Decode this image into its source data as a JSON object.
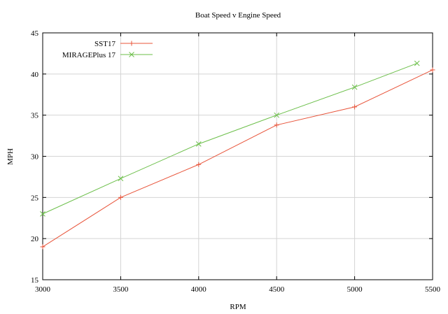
{
  "chart_data": {
    "type": "line",
    "title": "Boat Speed v Engine Speed",
    "xlabel": "RPM",
    "ylabel": "MPH",
    "xlim": [
      3000,
      5500
    ],
    "ylim": [
      15,
      45
    ],
    "xticks": [
      3000,
      3500,
      4000,
      4500,
      5000,
      5500
    ],
    "yticks": [
      15,
      20,
      25,
      30,
      35,
      40,
      45
    ],
    "grid": true,
    "legend_position": "top-left",
    "series": [
      {
        "name": "SST17",
        "color": "#e8543a",
        "marker": "plus",
        "x": [
          3000,
          3500,
          4000,
          4500,
          5000,
          5500
        ],
        "y": [
          19,
          25,
          29,
          33.8,
          36,
          40.5
        ]
      },
      {
        "name": "MIRAGEPlus 17",
        "color": "#6cbf4a",
        "marker": "cross",
        "x": [
          3000,
          3500,
          4000,
          4500,
          5000,
          5400
        ],
        "y": [
          23,
          27.3,
          31.5,
          35,
          38.4,
          41.3
        ]
      }
    ]
  }
}
